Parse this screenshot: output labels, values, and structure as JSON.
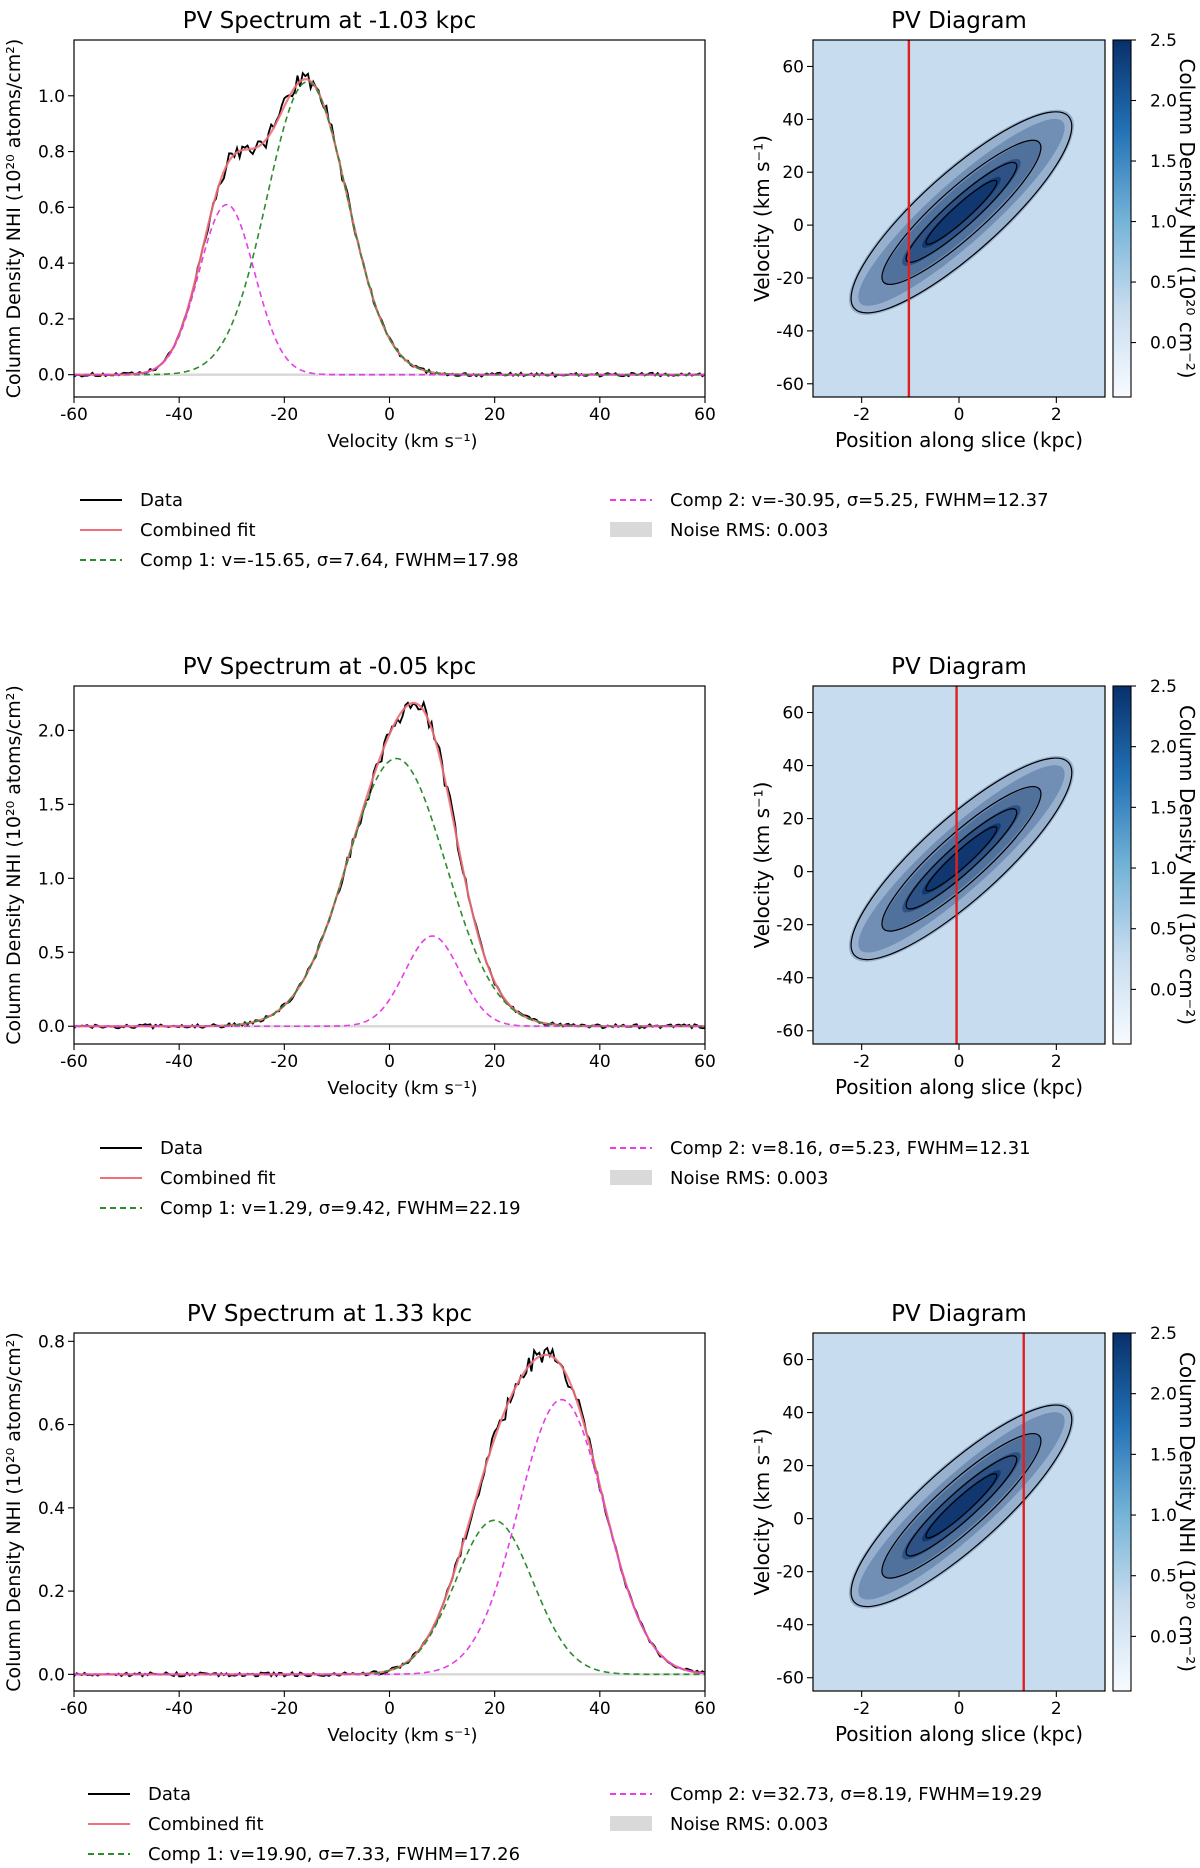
{
  "labels": {
    "spectrum_xlabel": "Velocity (km s⁻¹)",
    "spectrum_ylabel": "Column Density NHI (10²⁰ atoms/cm²)",
    "pv_title": "PV Diagram",
    "pv_xlabel": "Position along slice (kpc)",
    "pv_ylabel": "Velocity (km s⁻¹)",
    "colorbar_label": "Column Density NHI (10²⁰ cm⁻²)"
  },
  "colors": {
    "data": "#000000",
    "combined_fit": "#f0707a",
    "comp1": "#2e8b2e",
    "comp2": "#e83ce8",
    "noise": "#d9d9d9",
    "marker": "#e0201f",
    "pv_background": "#c7dcef",
    "pv_peak": "#08306b"
  },
  "chart_data": [
    {
      "type": "line",
      "title": "PV Spectrum at -1.03 kpc",
      "xlabel": "Velocity (km s⁻¹)",
      "ylabel": "Column Density NHI (10²⁰ atoms/cm²)",
      "xlim": [
        -60,
        60
      ],
      "ylim": [
        -0.08,
        1.2
      ],
      "xticks": [
        -60,
        -40,
        -20,
        0,
        20,
        40,
        60
      ],
      "yticks": [
        0.0,
        0.2,
        0.4,
        0.6,
        0.8,
        1.0
      ],
      "ytick_labels": [
        "0.0",
        "0.2",
        "0.4",
        "0.6",
        "0.8",
        "1.0"
      ],
      "components": [
        {
          "name": "Comp 1",
          "amp": 1.05,
          "center": -15.65,
          "sigma": 7.64,
          "fwhm": 17.98
        },
        {
          "name": "Comp 2",
          "amp": 0.61,
          "center": -30.95,
          "sigma": 5.25,
          "fwhm": 12.37
        }
      ],
      "noise_rms": 0.003,
      "data_peak": 1.12,
      "legend": {
        "data": "Data",
        "combined": "Combined fit",
        "comp1": "Comp 1: v=-15.65, σ=7.64, FWHM=17.98",
        "comp2": "Comp 2: v=-30.95, σ=5.25, FWHM=12.37",
        "noise": "Noise RMS: 0.003"
      },
      "pv": {
        "title": "PV Diagram",
        "slice_position_kpc": -1.03,
        "xlim": [
          -3,
          3
        ],
        "ylim": [
          -65,
          70
        ],
        "xticks": [
          -2,
          0,
          2
        ],
        "yticks": [
          -60,
          -40,
          -20,
          0,
          20,
          40,
          60
        ],
        "colorbar_range": [
          -0.45,
          2.5
        ],
        "colorbar_ticks": [
          0.0,
          0.5,
          1.0,
          1.5,
          2.0,
          2.5
        ],
        "colorbar_tick_labels": [
          "0.0",
          "0.5",
          "1.0",
          "1.5",
          "2.0",
          "2.5"
        ]
      }
    },
    {
      "type": "line",
      "title": "PV Spectrum at -0.05 kpc",
      "xlabel": "Velocity (km s⁻¹)",
      "ylabel": "Column Density NHI (10²⁰ atoms/cm²)",
      "xlim": [
        -60,
        60
      ],
      "ylim": [
        -0.12,
        2.3
      ],
      "xticks": [
        -60,
        -40,
        -20,
        0,
        20,
        40,
        60
      ],
      "yticks": [
        0.0,
        0.5,
        1.0,
        1.5,
        2.0
      ],
      "ytick_labels": [
        "0.0",
        "0.5",
        "1.0",
        "1.5",
        "2.0"
      ],
      "components": [
        {
          "name": "Comp 1",
          "amp": 1.81,
          "center": 1.29,
          "sigma": 9.42,
          "fwhm": 22.19
        },
        {
          "name": "Comp 2",
          "amp": 0.61,
          "center": 8.16,
          "sigma": 5.23,
          "fwhm": 12.31
        }
      ],
      "noise_rms": 0.003,
      "data_peak": 2.2,
      "legend": {
        "data": "Data",
        "combined": "Combined fit",
        "comp1": "Comp 1: v=1.29, σ=9.42, FWHM=22.19",
        "comp2": "Comp 2: v=8.16, σ=5.23, FWHM=12.31",
        "noise": "Noise RMS: 0.003"
      },
      "pv": {
        "title": "PV Diagram",
        "slice_position_kpc": -0.05,
        "xlim": [
          -3,
          3
        ],
        "ylim": [
          -65,
          70
        ],
        "xticks": [
          -2,
          0,
          2
        ],
        "yticks": [
          -60,
          -40,
          -20,
          0,
          20,
          40,
          60
        ],
        "colorbar_range": [
          -0.45,
          2.5
        ],
        "colorbar_ticks": [
          0.0,
          0.5,
          1.0,
          1.5,
          2.0,
          2.5
        ],
        "colorbar_tick_labels": [
          "0.0",
          "0.5",
          "1.0",
          "1.5",
          "2.0",
          "2.5"
        ]
      }
    },
    {
      "type": "line",
      "title": "PV Spectrum at 1.33 kpc",
      "xlabel": "Velocity (km s⁻¹)",
      "ylabel": "Column Density NHI (10²⁰ atoms/cm²)",
      "xlim": [
        -60,
        60
      ],
      "ylim": [
        -0.04,
        0.82
      ],
      "xticks": [
        -60,
        -40,
        -20,
        0,
        20,
        40,
        60
      ],
      "yticks": [
        0.0,
        0.2,
        0.4,
        0.6,
        0.8
      ],
      "ytick_labels": [
        "0.0",
        "0.2",
        "0.4",
        "0.6",
        "0.8"
      ],
      "components": [
        {
          "name": "Comp 1",
          "amp": 0.37,
          "center": 19.9,
          "sigma": 7.33,
          "fwhm": 17.26
        },
        {
          "name": "Comp 2",
          "amp": 0.66,
          "center": 32.73,
          "sigma": 8.19,
          "fwhm": 19.29
        }
      ],
      "noise_rms": 0.003,
      "data_peak": 0.785,
      "legend": {
        "data": "Data",
        "combined": "Combined fit",
        "comp1": "Comp 1: v=19.90, σ=7.33, FWHM=17.26",
        "comp2": "Comp 2: v=32.73, σ=8.19, FWHM=19.29",
        "noise": "Noise RMS: 0.003"
      },
      "pv": {
        "title": "PV Diagram",
        "slice_position_kpc": 1.33,
        "xlim": [
          -3,
          3
        ],
        "ylim": [
          -65,
          70
        ],
        "xticks": [
          -2,
          0,
          2
        ],
        "yticks": [
          -60,
          -40,
          -20,
          0,
          20,
          40,
          60
        ],
        "colorbar_range": [
          -0.45,
          2.5
        ],
        "colorbar_ticks": [
          0.0,
          0.5,
          1.0,
          1.5,
          2.0,
          2.5
        ],
        "colorbar_tick_labels": [
          "0.0",
          "0.5",
          "1.0",
          "1.5",
          "2.0",
          "2.5"
        ]
      }
    }
  ]
}
